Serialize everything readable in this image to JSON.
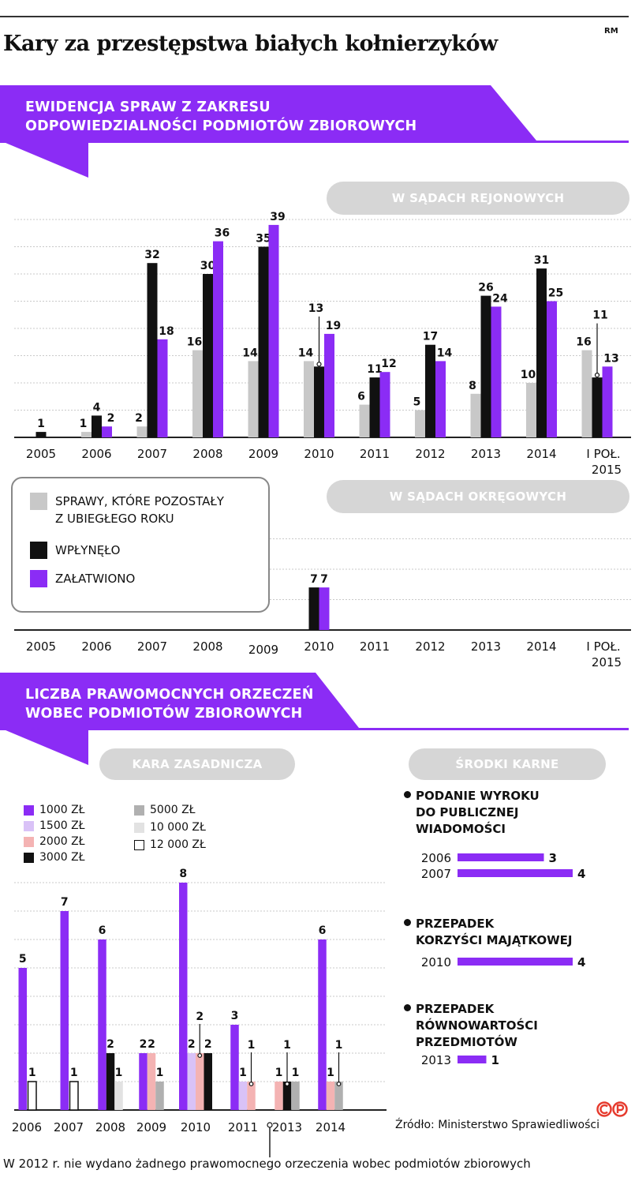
{
  "header": {
    "title": "Kary za przestępstwa białych kołnierzyków",
    "credit": "RM"
  },
  "colors": {
    "purple": "#8b2cf5",
    "black": "#111111",
    "gray": "#c8c8c8",
    "light_purple": "#d9c2f7",
    "pink": "#f4b3b3",
    "mid_gray": "#b0b0b0",
    "light_gray": "#e2e2e2",
    "pill": "#d6d6d6"
  },
  "section1": {
    "banner_line1": "EWIDENCJA SPRAW Z ZAKRESU",
    "banner_line2": "ODPOWIEDZIALNOŚCI PODMIOTÓW ZBIOROWYCH",
    "pill_rejonowe": "W SĄDACH REJONOWYCH",
    "pill_okregowe": "W SĄDACH OKRĘGOWYCH",
    "legend": [
      {
        "label_line1": "SPRAWY, KTÓRE POZOSTAŁY",
        "label_line2": "Z UBIEGŁEGO ROKU",
        "color": "#c8c8c8"
      },
      {
        "label_line1": "WPŁYNĘŁO",
        "label_line2": "",
        "color": "#111111"
      },
      {
        "label_line1": "ZAŁATWIONO",
        "label_line2": "",
        "color": "#8b2cf5"
      }
    ]
  },
  "section2": {
    "banner_line1": "LICZBA PRAWOMOCNYCH ORZECZEŃ",
    "banner_line2": "WOBEC PODMIOTÓW ZBIOROWYCH",
    "pill_kara": "KARA ZASADNICZA",
    "pill_srodki": "ŚRODKI KARNE",
    "legend": [
      {
        "label": "1000 ZŁ",
        "color": "#8b2cf5"
      },
      {
        "label": "1500 ZŁ",
        "color": "#d9c2f7"
      },
      {
        "label": "2000 ZŁ",
        "color": "#f4b3b3"
      },
      {
        "label": "3000 ZŁ",
        "color": "#111111"
      },
      {
        "label": "5000 ZŁ",
        "color": "#b0b0b0"
      },
      {
        "label": "10 000 ZŁ",
        "color": "#e2e2e2"
      },
      {
        "label": "12 000 ZŁ",
        "color": "#ffffff"
      }
    ],
    "srodki": [
      {
        "title_lines": [
          "PODANIE WYROKU",
          "DO PUBLICZNEJ",
          "WIADOMOŚCI"
        ],
        "rows": [
          {
            "year": "2006",
            "value": 3
          },
          {
            "year": "2007",
            "value": 4
          }
        ]
      },
      {
        "title_lines": [
          "PRZEPADEK",
          "KORZYŚCI MAJĄTKOWEJ"
        ],
        "rows": [
          {
            "year": "2010",
            "value": 4
          }
        ]
      },
      {
        "title_lines": [
          "PRZEPADEK",
          "RÓWNOWARTOŚCI",
          "PRZEDMIOTÓW"
        ],
        "rows": [
          {
            "year": "2013",
            "value": 1
          }
        ]
      }
    ]
  },
  "footer": {
    "source": "Źródło: Ministerstwo Sprawiedliwości",
    "footnote": "W 2012 r. nie wydano żadnego prawomocnego orzeczenia wobec podmiotów zbiorowych"
  },
  "chart_data": [
    {
      "type": "bar",
      "categories": [
        "2005",
        "2006",
        "2007",
        "2008",
        "2009",
        "2010",
        "2011",
        "2012",
        "2013",
        "2014",
        "I POŁ. 2015"
      ],
      "series": [
        {
          "name": "SPRAWY, KTÓRE POZOSTAŁY Z UBIEGŁEGO ROKU",
          "color": "#c8c8c8",
          "values": [
            0,
            1,
            2,
            16,
            14,
            14,
            6,
            5,
            8,
            10,
            16
          ]
        },
        {
          "name": "WPŁYNĘŁO",
          "color": "#111111",
          "values": [
            1,
            4,
            32,
            30,
            35,
            13,
            11,
            17,
            26,
            31,
            11
          ]
        },
        {
          "name": "ZAŁATWIONO",
          "color": "#8b2cf5",
          "values": [
            0,
            2,
            18,
            36,
            39,
            19,
            12,
            14,
            24,
            25,
            13
          ]
        }
      ],
      "title": "W SĄDACH REJONOWYCH",
      "ylim": [
        0,
        40
      ],
      "grid": true
    },
    {
      "type": "bar",
      "categories": [
        "2005",
        "2006",
        "2007",
        "2008",
        "2009",
        "2010",
        "2011",
        "2012",
        "2013",
        "2014",
        "I POŁ. 2015"
      ],
      "series": [
        {
          "name": "WPŁYNĘŁO",
          "color": "#111111",
          "values": [
            0,
            0,
            0,
            0,
            0,
            7,
            0,
            0,
            0,
            0,
            0
          ]
        },
        {
          "name": "ZAŁATWIONO",
          "color": "#8b2cf5",
          "values": [
            0,
            0,
            0,
            0,
            0,
            7,
            0,
            0,
            0,
            0,
            0
          ]
        }
      ],
      "title": "W SĄDACH OKRĘGOWYCH",
      "ylim": [
        0,
        15
      ],
      "grid": true
    },
    {
      "type": "bar",
      "categories": [
        "2006",
        "2007",
        "2008",
        "2009",
        "2010",
        "2011",
        "2013",
        "2014"
      ],
      "groups": [
        {
          "year": "2006",
          "bars": [
            {
              "name": "1000 ZŁ",
              "value": 5
            },
            {
              "name": "12 000 ZŁ",
              "value": 1
            }
          ]
        },
        {
          "year": "2007",
          "bars": [
            {
              "name": "1000 ZŁ",
              "value": 7
            },
            {
              "name": "12 000 ZŁ",
              "value": 1
            }
          ]
        },
        {
          "year": "2008",
          "bars": [
            {
              "name": "1000 ZŁ",
              "value": 6
            },
            {
              "name": "3000 ZŁ",
              "value": 2
            },
            {
              "name": "10 000 ZŁ",
              "value": 1
            }
          ]
        },
        {
          "year": "2009",
          "bars": [
            {
              "name": "1000 ZŁ",
              "value": 2
            },
            {
              "name": "2000 ZŁ",
              "value": 2
            },
            {
              "name": "5000 ZŁ",
              "value": 1
            }
          ]
        },
        {
          "year": "2010",
          "bars": [
            {
              "name": "1000 ZŁ",
              "value": 8
            },
            {
              "name": "1500 ZŁ",
              "value": 2
            },
            {
              "name": "2000 ZŁ",
              "value": 2
            },
            {
              "name": "3000 ZŁ",
              "value": 2
            }
          ]
        },
        {
          "year": "2011",
          "bars": [
            {
              "name": "1000 ZŁ",
              "value": 3
            },
            {
              "name": "1500 ZŁ",
              "value": 1
            },
            {
              "name": "2000 ZŁ",
              "value": 1
            }
          ]
        },
        {
          "year": "2013",
          "bars": [
            {
              "name": "2000 ZŁ",
              "value": 1
            },
            {
              "name": "3000 ZŁ",
              "value": 1
            },
            {
              "name": "5000 ZŁ",
              "value": 1
            }
          ]
        },
        {
          "year": "2014",
          "bars": [
            {
              "name": "1000 ZŁ",
              "value": 6
            },
            {
              "name": "2000 ZŁ",
              "value": 1
            },
            {
              "name": "5000 ZŁ",
              "value": 1
            }
          ]
        }
      ],
      "title": "KARA ZASADNICZA",
      "ylim": [
        0,
        8
      ],
      "grid": true
    },
    {
      "type": "bar",
      "orientation": "horizontal",
      "title": "ŚRODKI KARNE",
      "categories": [
        "2006",
        "2007",
        "2010",
        "2013"
      ],
      "values": [
        3,
        4,
        4,
        1
      ]
    }
  ]
}
